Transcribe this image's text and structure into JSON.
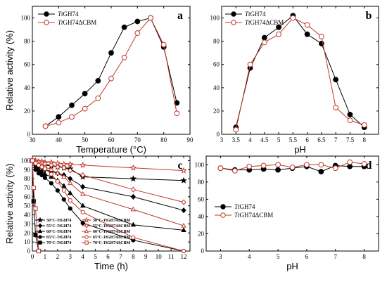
{
  "chart_data": [
    {
      "id": "a",
      "type": "line",
      "panel_label": "a",
      "xlabel": "Temperature (°C)",
      "ylabel": "Relative activity (%)",
      "xlim": [
        30,
        90
      ],
      "ylim": [
        0,
        110
      ],
      "xticks": [
        "30",
        "40",
        "50",
        "60",
        "70",
        "80",
        "90"
      ],
      "yticks": [
        "0",
        "20",
        "40",
        "60",
        "80",
        "100"
      ],
      "legend": "top-left",
      "series": [
        {
          "name": "TtGH74",
          "marker": "circle-filled",
          "color": "#000000",
          "x": [
            35,
            40,
            45,
            50,
            55,
            60,
            65,
            70,
            75,
            80,
            85
          ],
          "y": [
            7,
            15,
            25,
            35,
            46,
            70,
            92,
            97,
            100,
            75,
            27
          ]
        },
        {
          "name": "TtGH74ΔCBM",
          "marker": "circle-open",
          "color": "#c0392b",
          "x": [
            35,
            40,
            45,
            50,
            55,
            60,
            65,
            70,
            75,
            80,
            85
          ],
          "y": [
            7,
            10,
            15,
            22,
            31,
            48,
            66,
            87,
            100,
            77,
            18
          ]
        }
      ]
    },
    {
      "id": "b",
      "type": "line",
      "panel_label": "b",
      "xlabel": "pH",
      "ylabel": "",
      "xlim": [
        3,
        8.5
      ],
      "ylim": [
        0,
        110
      ],
      "xticks": [
        "3",
        "3.5",
        "4",
        "4.5",
        "5",
        "5.5",
        "6",
        "6.5",
        "7",
        "7.5",
        "8"
      ],
      "yticks": [
        "0",
        "20",
        "40",
        "60",
        "80",
        "100"
      ],
      "legend": "top-left",
      "series": [
        {
          "name": "TtGH74",
          "marker": "circle-filled",
          "color": "#000000",
          "x": [
            3.5,
            4,
            4.5,
            5,
            5.5,
            6,
            6.5,
            7,
            7.5,
            8
          ],
          "y": [
            6,
            57,
            83,
            92,
            102,
            86,
            78,
            47,
            17,
            6
          ]
        },
        {
          "name": "TtGH74ΔCBM",
          "marker": "circle-open",
          "color": "#c0392b",
          "x": [
            3.5,
            4,
            4.5,
            5,
            5.5,
            6,
            6.5,
            7,
            7.5,
            8
          ],
          "y": [
            4,
            60,
            79,
            86,
            100,
            94,
            84,
            23,
            12,
            8
          ]
        }
      ]
    },
    {
      "id": "c",
      "type": "line",
      "panel_label": "c",
      "xlabel": "Time (h)",
      "ylabel": "Relative activity (%)",
      "xlim": [
        0,
        12.5
      ],
      "ylim": [
        0,
        105
      ],
      "xticks": [
        "0",
        "1",
        "2",
        "3",
        "4",
        "5",
        "6",
        "7",
        "8",
        "9",
        "10",
        "11",
        "12"
      ],
      "yticks": [
        "0",
        "10",
        "20",
        "30",
        "40",
        "50",
        "60",
        "70",
        "80",
        "90",
        "100"
      ],
      "legend": "bottom-left",
      "x": [
        0,
        0.25,
        0.5,
        0.75,
        1,
        1.5,
        2,
        2.5,
        3,
        4,
        8,
        12
      ],
      "series": [
        {
          "name": "50°C-TtGH74",
          "marker": "star-filled",
          "color": "#000000",
          "y": [
            100,
            99,
            97,
            96,
            95,
            94,
            93,
            92,
            91,
            82,
            80,
            78
          ]
        },
        {
          "name": "55°C-TtGH74",
          "marker": "diamond-filled",
          "color": "#000000",
          "y": [
            100,
            95,
            93,
            92,
            90,
            88,
            86,
            84,
            80,
            71,
            60,
            45
          ]
        },
        {
          "name": "60°C-TtGH74",
          "marker": "triangle-filled",
          "color": "#000000",
          "y": [
            100,
            94,
            90,
            88,
            85,
            82,
            78,
            72,
            64,
            50,
            29,
            23
          ]
        },
        {
          "name": "65°C-TtGH74",
          "marker": "circle-filled",
          "color": "#000000",
          "y": [
            100,
            90,
            86,
            84,
            81,
            75,
            67,
            57,
            47,
            31,
            12,
            0
          ]
        },
        {
          "name": "70°C-TtGH74",
          "marker": "square-filled",
          "color": "#000000",
          "x": [
            0,
            0.1,
            0.25,
            0.5
          ],
          "y": [
            100,
            55,
            18,
            0
          ]
        },
        {
          "name": "50°C-TtGH74ΔCBM",
          "marker": "star-open",
          "color": "#c0392b",
          "y": [
            100,
            100,
            99,
            99,
            98,
            98,
            97,
            96,
            96,
            95,
            92,
            89
          ]
        },
        {
          "name": "55°C-TtGH74ΔCBM",
          "marker": "diamond-open",
          "color": "#c0392b",
          "y": [
            100,
            99,
            98,
            97,
            96,
            95,
            93,
            92,
            89,
            84,
            68,
            54
          ]
        },
        {
          "name": "60°C-TtGH74ΔCBM",
          "marker": "triangle-open",
          "color": "#c0392b",
          "y": [
            100,
            98,
            96,
            95,
            93,
            90,
            86,
            82,
            75,
            63,
            46,
            28
          ]
        },
        {
          "name": "65°C-TtGH74ΔCBM",
          "marker": "circle-open",
          "color": "#c0392b",
          "y": [
            100,
            97,
            95,
            93,
            91,
            85,
            77,
            67,
            56,
            43,
            15,
            0
          ]
        },
        {
          "name": "70°C-TtGH74ΔCBM",
          "marker": "square-open",
          "color": "#c0392b",
          "x": [
            0,
            0.1,
            0.25,
            0.5
          ],
          "y": [
            100,
            70,
            47,
            0
          ]
        }
      ]
    },
    {
      "id": "d",
      "type": "line",
      "panel_label": "d",
      "xlabel": "pH",
      "ylabel": "",
      "xlim": [
        2.5,
        8.5
      ],
      "ylim": [
        0,
        110
      ],
      "xticks": [
        "3",
        "4",
        "5",
        "6",
        "7",
        "8"
      ],
      "yticks": [
        "0",
        "20",
        "40",
        "60",
        "80",
        "100"
      ],
      "legend": "center-left",
      "series": [
        {
          "name": "TtGH74",
          "marker": "circle-filled",
          "color": "#000000",
          "x": [
            3,
            3.5,
            4,
            4.5,
            5,
            5.5,
            6,
            6.5,
            7,
            7.5,
            8
          ],
          "y": [
            96,
            94,
            94,
            95,
            94,
            96,
            98,
            92,
            99,
            98,
            98
          ]
        },
        {
          "name": "TtGH74ΔCBM",
          "marker": "circle-open",
          "color": "#c0392b",
          "x": [
            3,
            3.5,
            4,
            4.5,
            5,
            5.5,
            6,
            6.5,
            7,
            7.5,
            8
          ],
          "y": [
            96,
            93,
            98,
            99,
            100,
            97,
            100,
            100,
            96,
            103,
            101
          ]
        }
      ]
    }
  ]
}
